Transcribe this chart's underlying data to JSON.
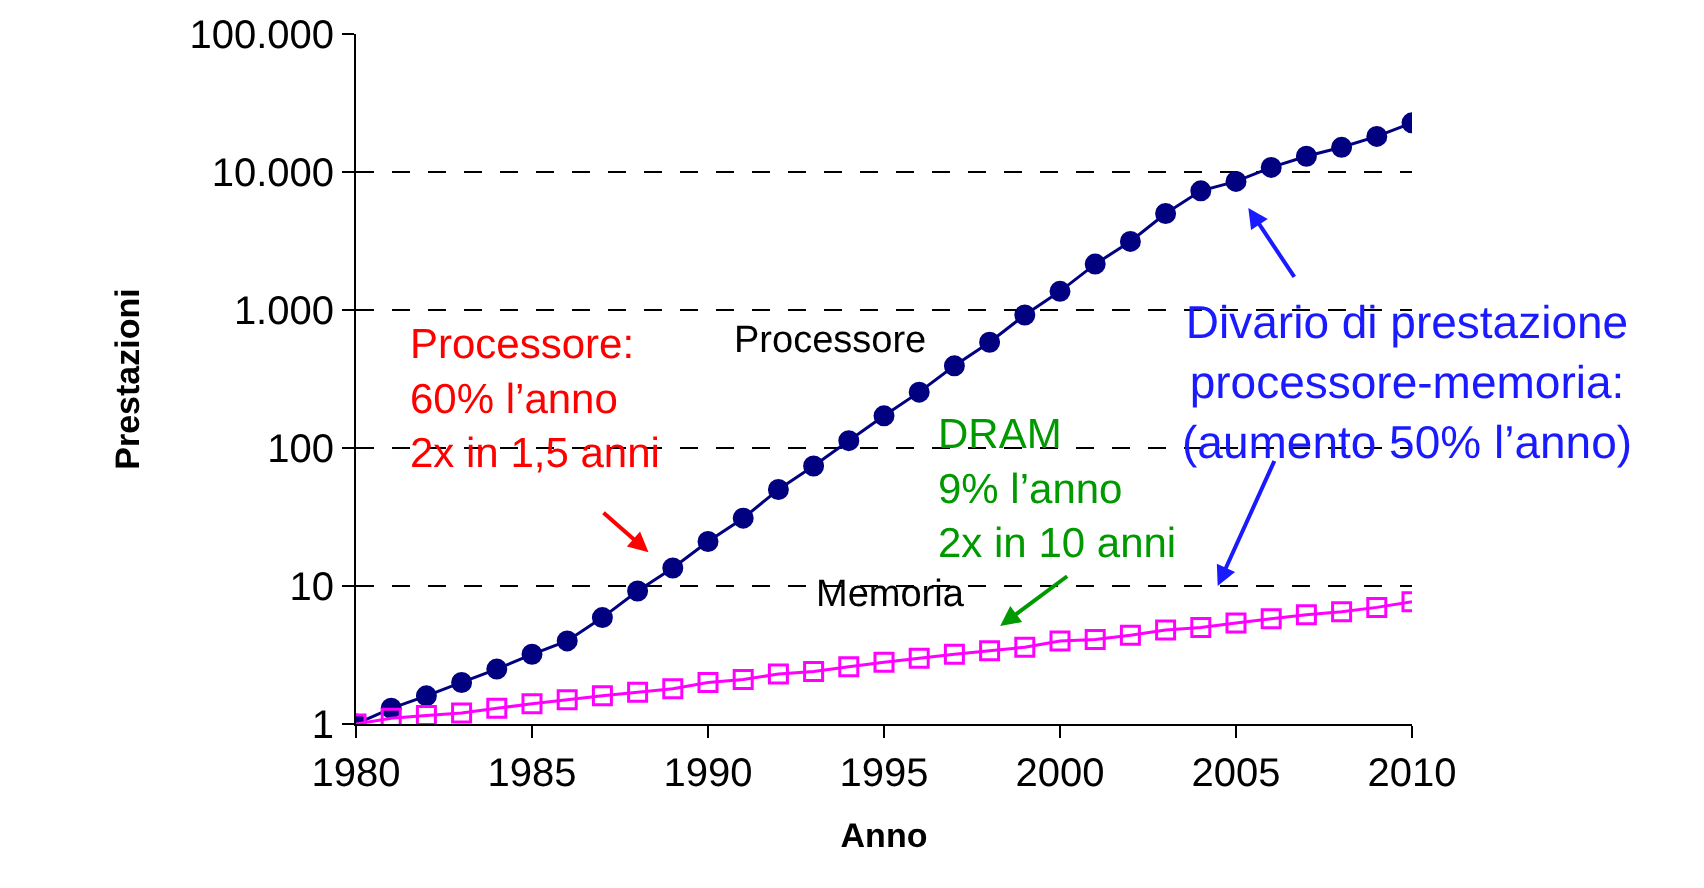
{
  "chart_data": {
    "type": "line",
    "xlabel": "Anno",
    "ylabel": "Prestazioni",
    "log": "y",
    "x": [
      1980,
      1981,
      1982,
      1983,
      1984,
      1985,
      1986,
      1987,
      1988,
      1989,
      1990,
      1991,
      1992,
      1993,
      1994,
      1995,
      1996,
      1997,
      1998,
      1999,
      2000,
      2001,
      2002,
      2003,
      2004,
      2005,
      2006,
      2007,
      2008,
      2009,
      2010
    ],
    "series": [
      {
        "name": "Processore",
        "color": "#000080",
        "marker": "circle",
        "values": [
          1,
          1.3,
          1.6,
          2.0,
          2.5,
          3.2,
          4.0,
          5.9,
          9.2,
          13.5,
          21,
          31,
          50,
          74,
          113,
          171,
          254,
          394,
          584,
          920,
          1365,
          2150,
          3140,
          5000,
          7300,
          8550,
          10800,
          13000,
          15100,
          18100,
          22700
        ]
      },
      {
        "name": "Memoria",
        "color": "#ff00ff",
        "marker": "square",
        "values": [
          1,
          1.1,
          1.15,
          1.2,
          1.3,
          1.4,
          1.5,
          1.6,
          1.7,
          1.8,
          2.0,
          2.1,
          2.3,
          2.4,
          2.6,
          2.8,
          3.0,
          3.2,
          3.4,
          3.6,
          4.0,
          4.1,
          4.4,
          4.8,
          5.0,
          5.4,
          5.8,
          6.2,
          6.5,
          7.0,
          7.7
        ]
      }
    ],
    "xlim": [
      1980,
      2010
    ],
    "xticks": [
      1980,
      1985,
      1990,
      1995,
      2000,
      2005,
      2010
    ],
    "ylim": [
      1,
      100000
    ],
    "yticks": [
      1,
      10,
      {
        "value": 100,
        "label": "100"
      },
      {
        "value": 1000,
        "label": "1.000"
      },
      {
        "value": 10000,
        "label": "10.000"
      },
      {
        "value": 100000,
        "label": "100.000"
      }
    ],
    "grid": "y",
    "legend": false,
    "line_style": "solid",
    "annotations": [
      "Processore:\n60% l’anno\n2x in 1,5 anni",
      "DRAM\n9% l’anno\n2x in 10 anni",
      "Divario di prestazione\nprocessore-memoria:\n(aumento 50% l’anno)"
    ]
  }
}
